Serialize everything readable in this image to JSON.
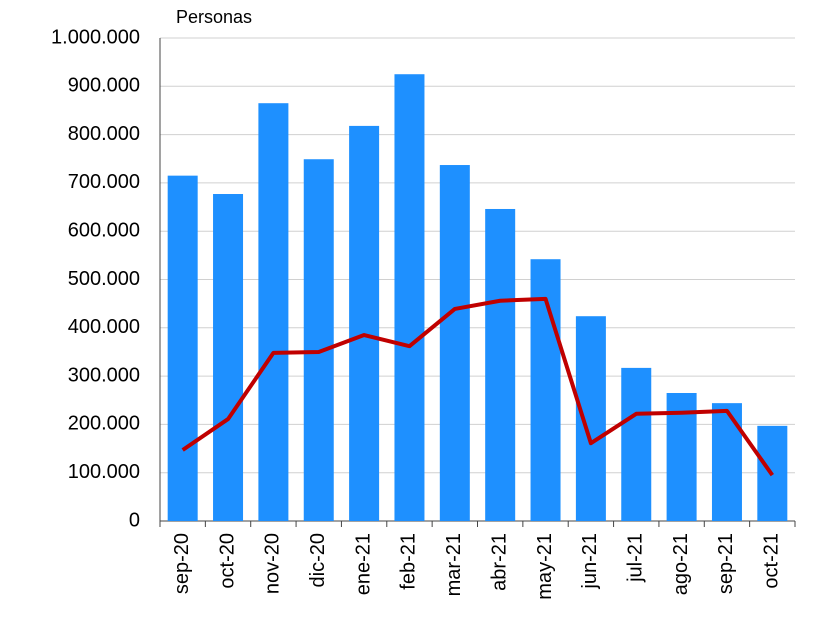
{
  "chart_data": {
    "type": "bar-line",
    "y_label": "Personas",
    "categories": [
      "sep-20",
      "oct-20",
      "nov-20",
      "dic-20",
      "ene-21",
      "feb-21",
      "mar-21",
      "abr-21",
      "may-21",
      "jun-21",
      "jul-21",
      "ago-21",
      "sep-21",
      "oct-21"
    ],
    "series": [
      {
        "type": "bar",
        "color": "#1e90ff",
        "values": [
          715000,
          677000,
          865000,
          749000,
          818000,
          925000,
          737000,
          646000,
          542000,
          424000,
          317000,
          265000,
          244000,
          197000
        ]
      },
      {
        "type": "line",
        "color": "#c00000",
        "values": [
          147000,
          211000,
          348000,
          350000,
          385000,
          362000,
          439000,
          456000,
          460000,
          161000,
          222000,
          224000,
          228000,
          95000
        ]
      }
    ],
    "ylim": [
      0,
      1000000
    ],
    "yticks": [
      0,
      {
        "value": 100000,
        "label": "100.000"
      },
      {
        "value": 200000,
        "label": "200.000"
      },
      {
        "value": 300000,
        "label": "300.000"
      },
      {
        "value": 400000,
        "label": "400.000"
      },
      {
        "value": 500000,
        "label": "500.000"
      },
      {
        "value": 600000,
        "label": "600.000"
      },
      {
        "value": 700000,
        "label": "700.000"
      },
      {
        "value": 800000,
        "label": "800.000"
      },
      {
        "value": 900000,
        "label": "900.000"
      },
      {
        "value": 1000000,
        "label": "1.000.000"
      }
    ],
    "grid": true
  }
}
